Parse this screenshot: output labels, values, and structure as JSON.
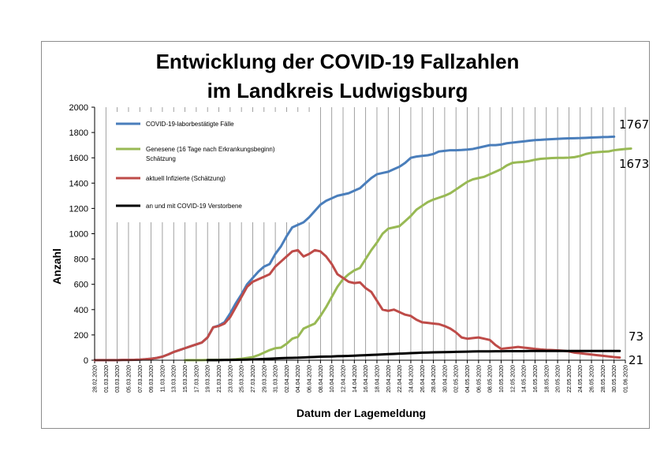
{
  "chart_data": {
    "type": "line",
    "title": [
      "Entwicklung der COVID-19 Fallzahlen",
      "im Landkreis Ludwigsburg"
    ],
    "xlabel": "Datum der Lagemeldung",
    "ylabel": "Anzahl",
    "ylim": [
      0,
      2000
    ],
    "yticks": [
      0,
      200,
      400,
      600,
      800,
      1000,
      1200,
      1400,
      1600,
      1800,
      2000
    ],
    "x_tick_labels": [
      "28.02.2020",
      "01.03.2020",
      "03.03.2020",
      "05.03.2020",
      "07.03.2020",
      "09.03.2020",
      "11.03.2020",
      "13.03.2020",
      "15.03.2020",
      "17.03.2020",
      "19.03.2020",
      "21.03.2020",
      "23.03.2020",
      "25.03.2020",
      "27.03.2020",
      "29.03.2020",
      "31.03.2020",
      "02.04.2020",
      "04.04.2020",
      "06.04.2020",
      "08.04.2020",
      "10.04.2020",
      "12.04.2020",
      "14.04.2020",
      "16.04.2020",
      "18.04.2020",
      "20.04.2020",
      "22.04.2020",
      "24.04.2020",
      "26.04.2020",
      "28.04.2020",
      "30.04.2020",
      "02.05.2020",
      "04.05.2020",
      "06.05.2020",
      "08.05.2020",
      "10.05.2020",
      "12.05.2020",
      "14.05.2020",
      "16.05.2020",
      "18.05.2020",
      "20.05.2020",
      "22.05.2020",
      "24.05.2020",
      "26.05.2020",
      "28.05.2020",
      "30.05.2020",
      "01.06.2020"
    ],
    "series": [
      {
        "name": "COVID-19-laborbestätigte Fälle",
        "color": "#4a7ebb",
        "start_index": 0,
        "values": [
          1,
          1,
          1,
          1,
          1,
          2,
          2,
          3,
          5,
          8,
          12,
          18,
          28,
          45,
          65,
          80,
          95,
          110,
          125,
          140,
          180,
          260,
          275,
          300,
          370,
          450,
          520,
          600,
          650,
          700,
          740,
          760,
          840,
          900,
          980,
          1050,
          1070,
          1090,
          1130,
          1180,
          1230,
          1260,
          1280,
          1300,
          1310,
          1320,
          1340,
          1360,
          1400,
          1440,
          1470,
          1480,
          1490,
          1510,
          1530,
          1560,
          1600,
          1610,
          1615,
          1620,
          1630,
          1650,
          1655,
          1660,
          1660,
          1662,
          1665,
          1670,
          1680,
          1690,
          1700,
          1700,
          1705,
          1715,
          1720,
          1725,
          1730,
          1735,
          1740,
          1742,
          1745,
          1748,
          1750,
          1752,
          1754,
          1755,
          1756,
          1758,
          1760,
          1762,
          1764,
          1765,
          1767
        ]
      },
      {
        "name": "Genesene (16 Tage nach Erkrankungsbeginn) Schätzung",
        "color": "#98b954",
        "start_index": 16,
        "values": [
          1,
          1,
          1,
          1,
          2,
          2,
          3,
          3,
          5,
          8,
          12,
          18,
          25,
          40,
          60,
          80,
          95,
          100,
          130,
          170,
          185,
          250,
          270,
          290,
          350,
          420,
          500,
          580,
          640,
          680,
          710,
          730,
          800,
          870,
          930,
          1000,
          1040,
          1050,
          1060,
          1100,
          1140,
          1190,
          1220,
          1250,
          1270,
          1285,
          1300,
          1320,
          1350,
          1380,
          1410,
          1430,
          1440,
          1450,
          1470,
          1490,
          1510,
          1540,
          1560,
          1565,
          1568,
          1575,
          1585,
          1592,
          1595,
          1598,
          1600,
          1600,
          1601,
          1605,
          1615,
          1630,
          1640,
          1645,
          1648,
          1650,
          1660,
          1665,
          1670,
          1673
        ]
      },
      {
        "name": "aktuell Infizierte (Schätzung)",
        "color": "#be4b48",
        "start_index": 0,
        "values": [
          1,
          1,
          1,
          1,
          1,
          2,
          2,
          3,
          5,
          8,
          12,
          18,
          28,
          45,
          65,
          80,
          95,
          110,
          125,
          140,
          180,
          260,
          270,
          290,
          340,
          420,
          500,
          580,
          620,
          640,
          660,
          680,
          740,
          780,
          820,
          860,
          870,
          820,
          840,
          870,
          860,
          820,
          760,
          680,
          650,
          620,
          610,
          615,
          570,
          540,
          470,
          400,
          390,
          400,
          380,
          360,
          350,
          320,
          300,
          295,
          290,
          285,
          270,
          250,
          220,
          180,
          170,
          175,
          180,
          170,
          160,
          120,
          90,
          95,
          100,
          105,
          100,
          95,
          90,
          85,
          82,
          80,
          78,
          75,
          70,
          60,
          55,
          50,
          45,
          40,
          35,
          30,
          25,
          21
        ]
      },
      {
        "name": "an und mit COVID-19 Verstorbene",
        "color": "#000000",
        "start_index": 20,
        "values": [
          1,
          1,
          1,
          2,
          2,
          3,
          4,
          5,
          6,
          8,
          10,
          12,
          14,
          16,
          18,
          19,
          20,
          22,
          24,
          26,
          28,
          29,
          30,
          32,
          33,
          34,
          36,
          38,
          40,
          42,
          44,
          46,
          48,
          50,
          52,
          54,
          56,
          58,
          60,
          61,
          62,
          63,
          64,
          65,
          66,
          67,
          68,
          69,
          70,
          70,
          70,
          71,
          71,
          72,
          72,
          72,
          72,
          73,
          73,
          73,
          73,
          73,
          73,
          73,
          73,
          73,
          73,
          73,
          73,
          73,
          73,
          73,
          73,
          73
        ]
      }
    ],
    "end_labels": [
      "1767",
      "1673",
      "73",
      "21"
    ]
  }
}
